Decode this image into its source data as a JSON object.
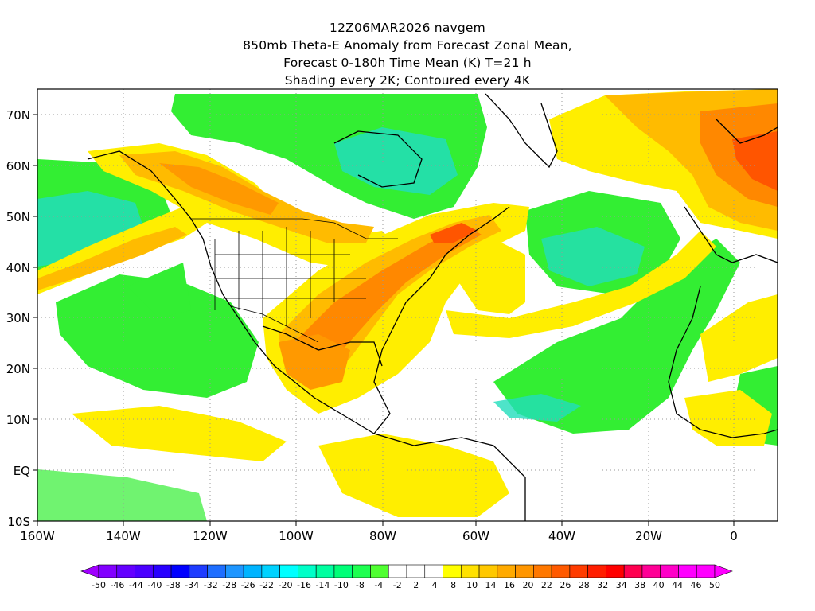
{
  "title": {
    "line1": "12Z06MAR2026 navgem",
    "line2": "850mb Theta-E Anomaly from Forecast Zonal Mean,",
    "line3": "Forecast 0-180h Time Mean (K) T=21 h",
    "line4": "Shading every 2K; Contoured every 4K"
  },
  "axes": {
    "lat_labels": [
      "70N",
      "60N",
      "50N",
      "40N",
      "30N",
      "20N",
      "10N",
      "EQ",
      "10S"
    ],
    "lon_labels": [
      "160W",
      "140W",
      "120W",
      "100W",
      "80W",
      "60W",
      "40W",
      "20W",
      "0"
    ]
  },
  "legend": {
    "labels": [
      "-50",
      "-46",
      "-44",
      "-40",
      "-38",
      "-34",
      "-32",
      "-28",
      "-26",
      "-22",
      "-20",
      "-16",
      "-14",
      "-10",
      "-8",
      "-4",
      "-2",
      "2",
      "4",
      "8",
      "10",
      "14",
      "16",
      "20",
      "22",
      "26",
      "28",
      "32",
      "34",
      "38",
      "40",
      "44",
      "46",
      "50"
    ],
    "colors": [
      "#a000ff",
      "#8200ff",
      "#6400ff",
      "#4b00ff",
      "#2800ff",
      "#0000ff",
      "#1e3cff",
      "#1e6eff",
      "#1e96ff",
      "#00b4ff",
      "#00d2ff",
      "#00ffff",
      "#00ffc8",
      "#00ffa0",
      "#00ff78",
      "#1eff50",
      "#50ff32",
      "#ffffff",
      "#ffffff",
      "#ffffff",
      "#ffff00",
      "#ffe100",
      "#ffc800",
      "#ffaa00",
      "#ff9600",
      "#ff7800",
      "#ff5a00",
      "#ff3c00",
      "#ff1e00",
      "#ff0000",
      "#ff0050",
      "#ff0096",
      "#ff00c8",
      "#ff00ff",
      "#ff00ff",
      "#ff00ff"
    ]
  },
  "map_colors": {
    "land_line": "#000000",
    "green": "#33ee33",
    "cyan": "#22ddbb",
    "yellow": "#ffee00",
    "orange": "#ffbb00",
    "darkorange": "#ff8800",
    "red": "#ff5500"
  }
}
